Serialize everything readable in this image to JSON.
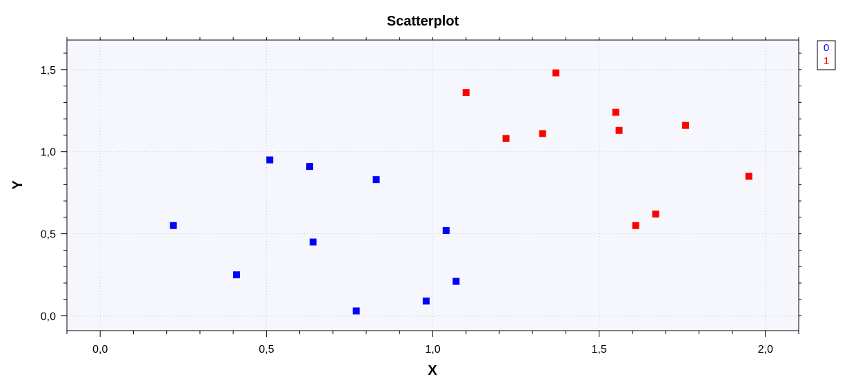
{
  "chart_data": {
    "type": "scatter",
    "title": "Scatterplot",
    "xlabel": "X",
    "ylabel": "Y",
    "xlim": [
      -0.1,
      2.1
    ],
    "ylim": [
      -0.09,
      1.68
    ],
    "xticks": [
      0.0,
      0.5,
      1.0,
      1.5,
      2.0
    ],
    "xtick_labels": [
      "0,0",
      "0,5",
      "1,0",
      "1,5",
      "2,0"
    ],
    "yticks": [
      0.0,
      0.5,
      1.0,
      1.5
    ],
    "ytick_labels": [
      "0,0",
      "0,5",
      "1,0",
      "1,5"
    ],
    "grid": true,
    "legend_position": "top-right",
    "series": [
      {
        "name": "0",
        "color": "#0000ff",
        "marker": "square",
        "points": [
          {
            "x": 0.22,
            "y": 0.55
          },
          {
            "x": 0.41,
            "y": 0.25
          },
          {
            "x": 0.51,
            "y": 0.95
          },
          {
            "x": 0.63,
            "y": 0.91
          },
          {
            "x": 0.64,
            "y": 0.45
          },
          {
            "x": 0.77,
            "y": 0.03
          },
          {
            "x": 0.83,
            "y": 0.83
          },
          {
            "x": 0.98,
            "y": 0.09
          },
          {
            "x": 1.04,
            "y": 0.52
          },
          {
            "x": 1.07,
            "y": 0.21
          }
        ]
      },
      {
        "name": "1",
        "color": "#ff0000",
        "marker": "square",
        "points": [
          {
            "x": 1.1,
            "y": 1.36
          },
          {
            "x": 1.22,
            "y": 1.08
          },
          {
            "x": 1.33,
            "y": 1.11
          },
          {
            "x": 1.37,
            "y": 1.48
          },
          {
            "x": 1.55,
            "y": 1.24
          },
          {
            "x": 1.56,
            "y": 1.13
          },
          {
            "x": 1.61,
            "y": 0.55
          },
          {
            "x": 1.67,
            "y": 0.62
          },
          {
            "x": 1.76,
            "y": 1.16
          },
          {
            "x": 1.95,
            "y": 0.85
          }
        ]
      }
    ]
  }
}
